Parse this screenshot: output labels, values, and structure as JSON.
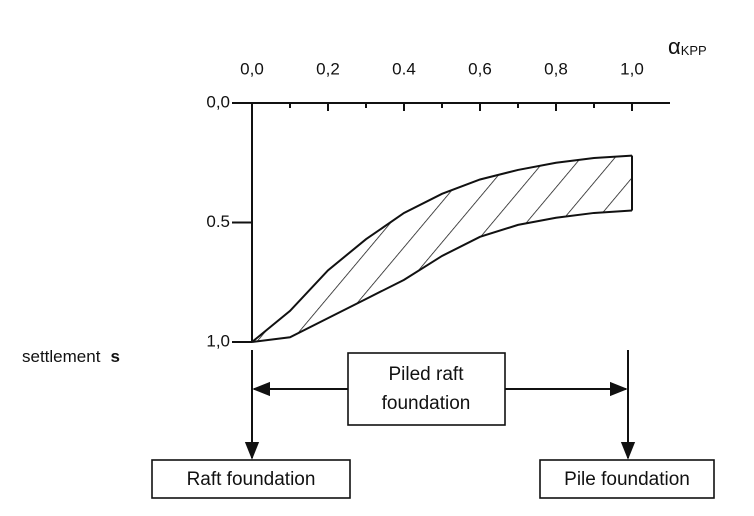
{
  "chart_data": {
    "type": "band",
    "xlabel": {
      "text": "α",
      "subscript": "KPP"
    },
    "ylabel": {
      "text": "settlement",
      "symbol": "s"
    },
    "x": [
      0,
      0.1,
      0.2,
      0.3,
      0.4,
      0.5,
      0.6,
      0.7,
      0.8,
      0.9,
      1.0
    ],
    "series": [
      {
        "color": "#111111",
        "values": [
          1.0,
          0.87,
          0.7,
          0.57,
          0.46,
          0.38,
          0.32,
          0.28,
          0.25,
          0.23,
          0.22
        ]
      },
      {
        "color": "#111111",
        "values": [
          1.0,
          0.98,
          0.9,
          0.82,
          0.74,
          0.64,
          0.56,
          0.51,
          0.48,
          0.46,
          0.45
        ]
      }
    ],
    "hatch": true,
    "xlim": [
      0,
      1.1
    ],
    "xticks": [
      {
        "value": 0,
        "label": "0,0"
      },
      {
        "value": 0.2,
        "label": "0,2"
      },
      {
        "value": 0.4,
        "label": "0.4"
      },
      {
        "value": 0.6,
        "label": "0,6"
      },
      {
        "value": 0.8,
        "label": "0,8"
      },
      {
        "value": 1.0,
        "label": "1,0"
      }
    ],
    "xminorticks": [
      0.1,
      0.3,
      0.5,
      0.7,
      0.9
    ],
    "ylim": [
      0,
      1
    ],
    "yinverted": true,
    "yticks": [
      {
        "value": 0,
        "label": "0,0"
      },
      {
        "value": 0.5,
        "label": "0.5"
      },
      {
        "value": 1.0,
        "label": "1,0"
      }
    ],
    "annotations": {
      "piled_raft": [
        "Piled raft",
        "foundation"
      ],
      "raft": "Raft foundation",
      "pile": "Pile foundation"
    }
  }
}
